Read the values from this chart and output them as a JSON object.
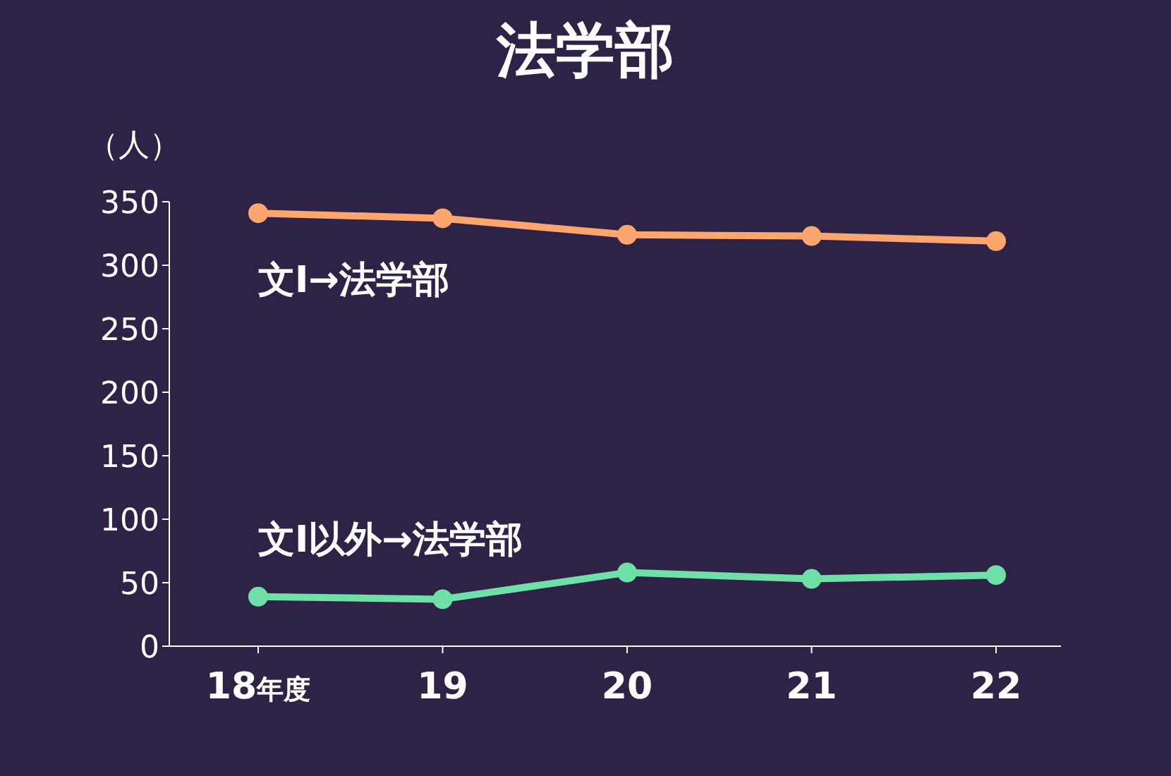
{
  "chart_data": {
    "type": "line",
    "title": "法学部",
    "ylabel": "（人）",
    "categories": [
      "18年度",
      "19",
      "20",
      "21",
      "22"
    ],
    "series": [
      {
        "name": "文Ⅰ→法学部",
        "color": "#ffa66f",
        "values": [
          341,
          337,
          324,
          323,
          319
        ]
      },
      {
        "name": "文Ⅰ以外→法学部",
        "color": "#6ee0a8",
        "values": [
          39,
          37,
          58,
          53,
          56
        ]
      }
    ],
    "ylim": [
      0,
      350
    ],
    "yticks": [
      0,
      50,
      100,
      150,
      200,
      250,
      300,
      350
    ],
    "grid": false,
    "legend": false,
    "marker": "circle",
    "line_style": "solid"
  }
}
